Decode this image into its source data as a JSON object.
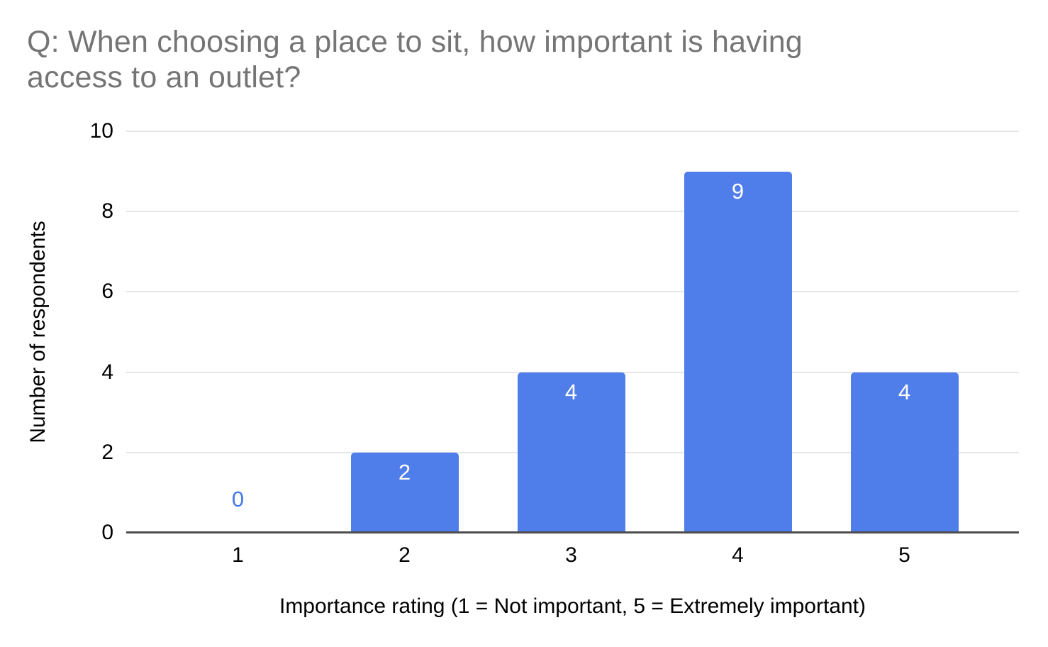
{
  "title": "Q: When choosing a place to sit, how important is having\naccess to an outlet?",
  "colors": {
    "background": "#ffffff",
    "title_text": "#757575",
    "axis_text": "#000000",
    "gridline": "#e6e6e6",
    "baseline": "#4d4d4d",
    "bar": "#4f7de9",
    "bar_label_inside": "#ffffff",
    "bar_label_zero": "#4479e8"
  },
  "chart_data": {
    "type": "bar",
    "title": "Q: When choosing a place to sit, how important is having access to an outlet?",
    "categories": [
      "1",
      "2",
      "3",
      "4",
      "5"
    ],
    "values": [
      0,
      2,
      4,
      9,
      4
    ],
    "xlabel": "Importance rating (1 = Not important, 5 = Extremely important)",
    "ylabel": "Number of respondents",
    "ylim": [
      0,
      10
    ],
    "yticks": [
      0,
      2,
      4,
      6,
      8,
      10
    ],
    "grid": true,
    "legend": "none",
    "data_labels": true
  }
}
